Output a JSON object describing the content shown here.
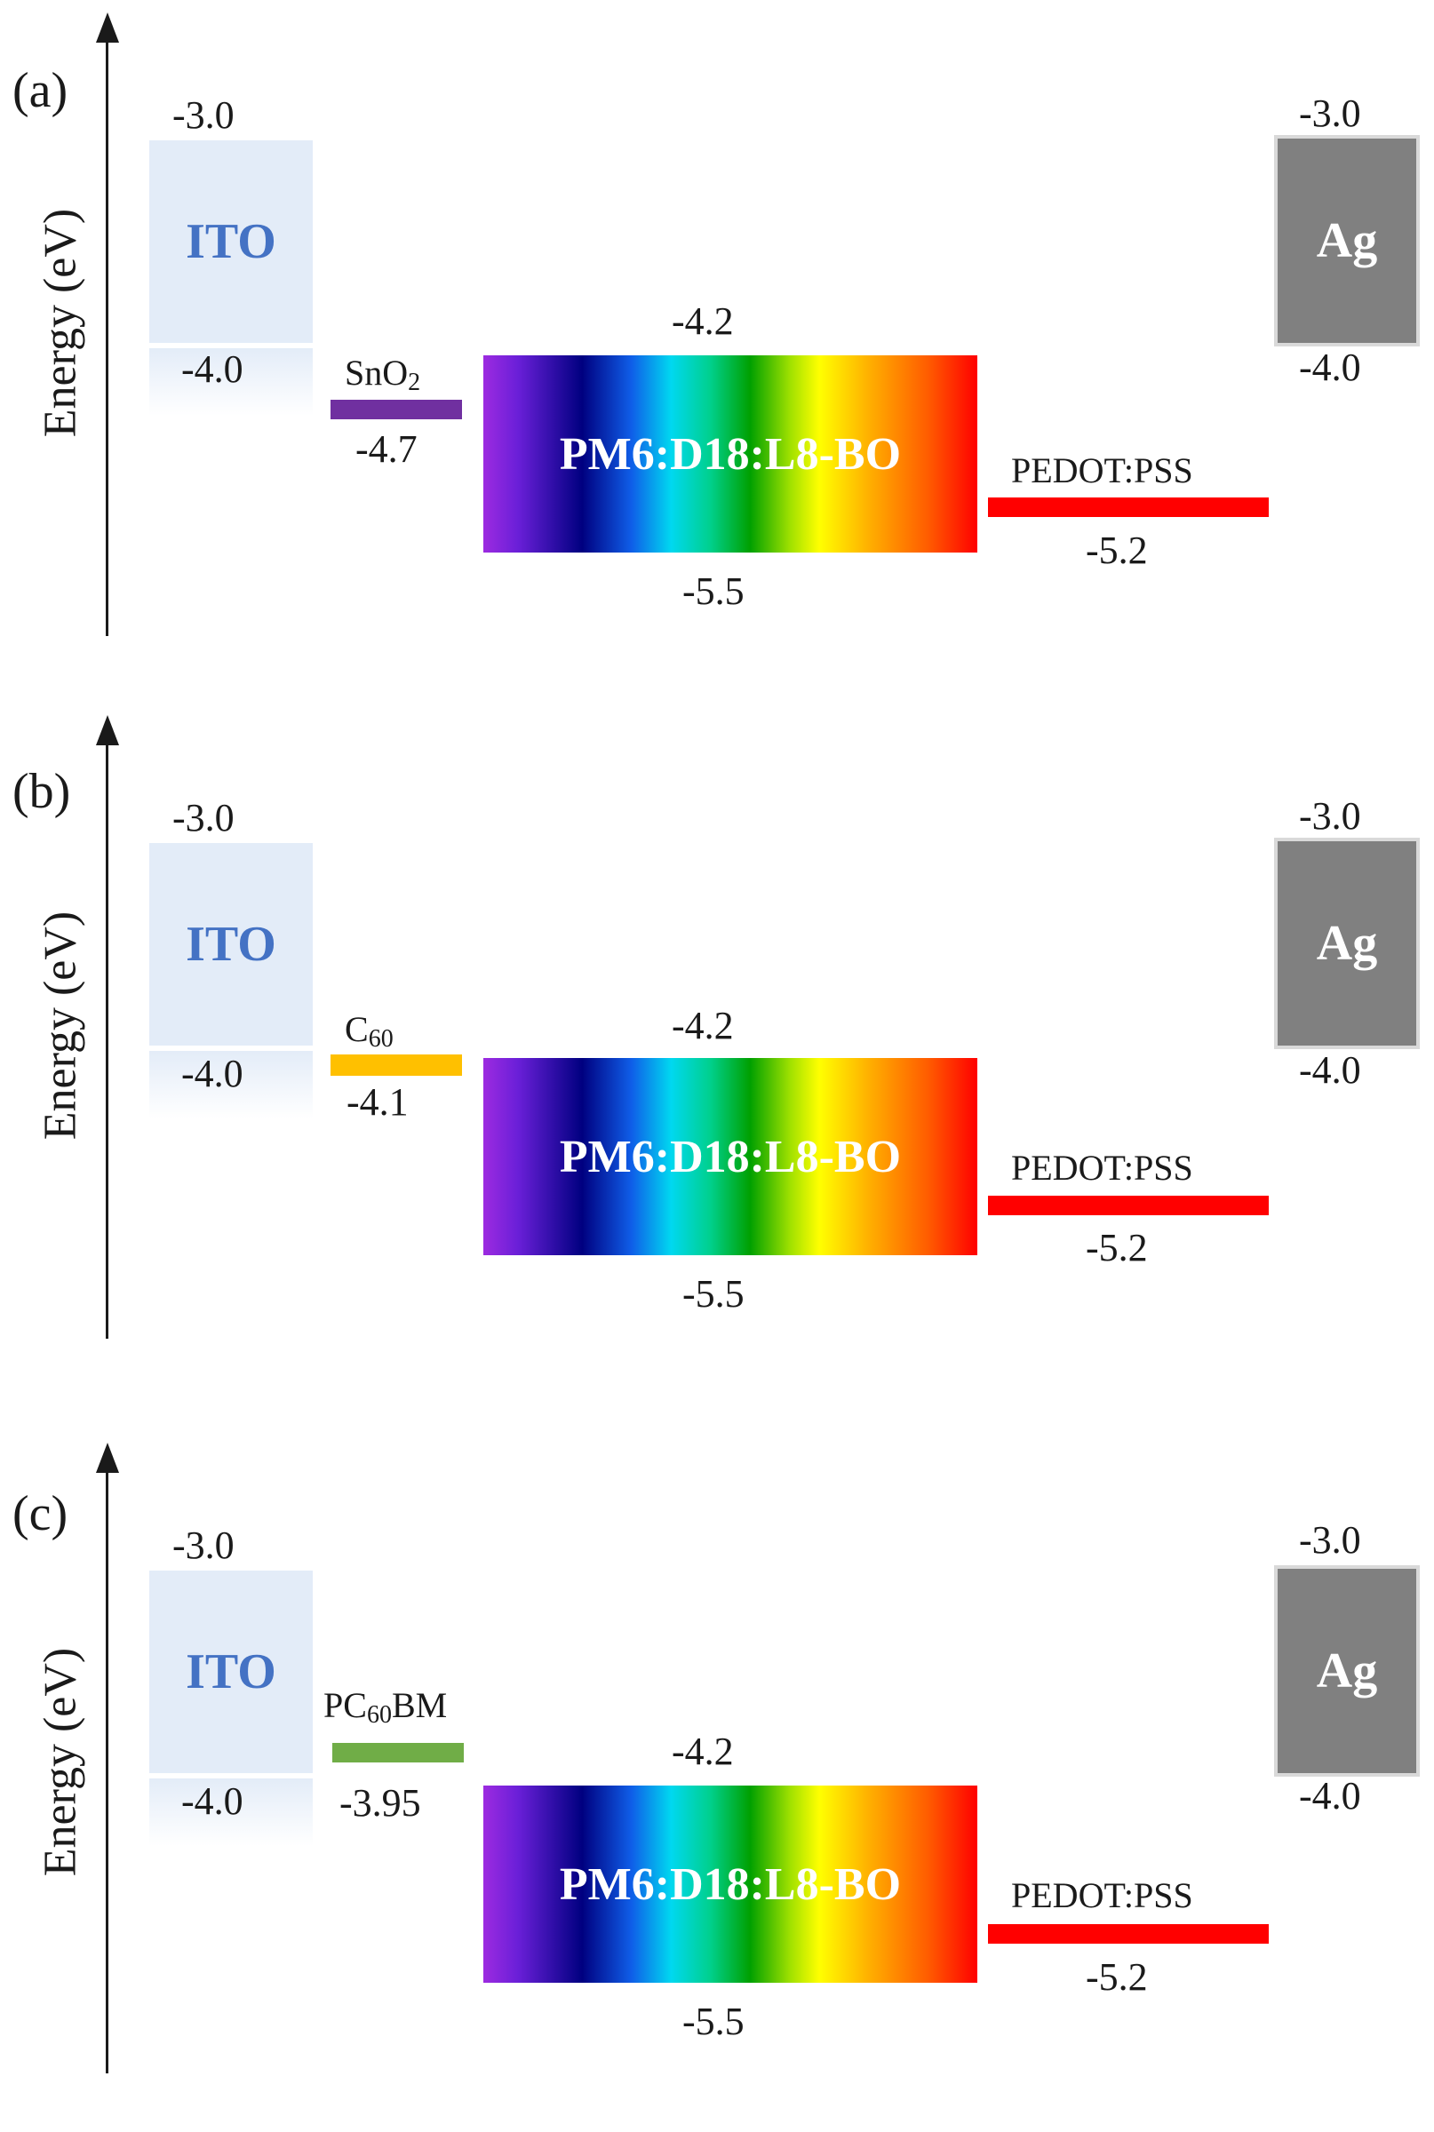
{
  "axis_title": "Energy (eV)",
  "electrodes": {
    "ito": {
      "name": "ITO",
      "top_energy": "-3.0",
      "bottom_energy": "-4.0",
      "color": "#e3ecf8",
      "text_color": "#4472c4"
    },
    "ag": {
      "name": "Ag",
      "top_energy": "-3.0",
      "bottom_energy": "-4.0",
      "color": "#808080"
    }
  },
  "active_layer": {
    "name": "PM6:D18:L8-BO",
    "lumo": "-4.2",
    "homo": "-5.5"
  },
  "hole_transport": {
    "name": "PEDOT:PSS",
    "level": "-5.2",
    "color": "#ff0000"
  },
  "panels": [
    {
      "label": "(a)",
      "etl": {
        "name_base": "SnO",
        "name_sub": "2",
        "name_tail": "",
        "level": "-4.7",
        "color": "#7030a0"
      }
    },
    {
      "label": "(b)",
      "etl": {
        "name_base": "C",
        "name_sub": "60",
        "name_tail": "",
        "level": "-4.1",
        "color": "#ffc000"
      }
    },
    {
      "label": "(c)",
      "etl": {
        "name_base": "PC",
        "name_sub": "60",
        "name_tail": "BM",
        "level": "-3.95",
        "color": "#70ad47"
      }
    }
  ]
}
